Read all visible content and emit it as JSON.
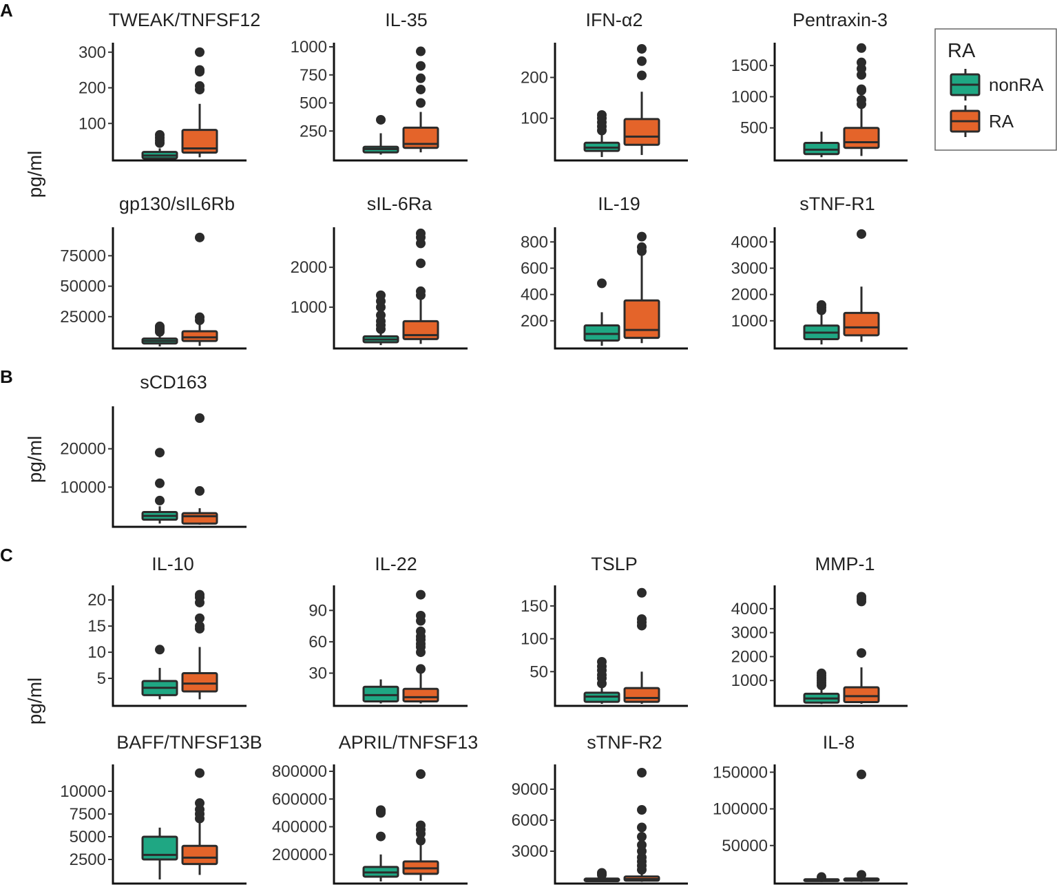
{
  "legend": {
    "title": "RA",
    "entries": [
      {
        "label": "nonRA",
        "color": "#1fa783"
      },
      {
        "label": "RA",
        "color": "#e4642a"
      }
    ]
  },
  "panels": [
    "A",
    "B",
    "C"
  ],
  "ylabel": "pg/ml",
  "colors": {
    "nonRA": "#1fa783",
    "RA": "#e4642a",
    "outline": "#2b2b2b"
  },
  "chart_data": [
    {
      "type": "box",
      "title": "TWEAK/TNFSF12",
      "ylim": [
        0,
        315
      ],
      "yticks": [
        100,
        200,
        300
      ],
      "groups": [
        {
          "name": "nonRA",
          "whisker_low": 0,
          "q1": 2,
          "median": 10,
          "q3": 20,
          "whisker_high": 30,
          "outliers": [
            45,
            52,
            60,
            68
          ]
        },
        {
          "name": "RA",
          "whisker_low": 5,
          "q1": 18,
          "median": 30,
          "q3": 82,
          "whisker_high": 155,
          "outliers": [
            195,
            205,
            245,
            250,
            300
          ]
        }
      ]
    },
    {
      "type": "box",
      "title": "IL-35",
      "ylim": [
        0,
        1000
      ],
      "yticks": [
        250,
        500,
        750,
        1000
      ],
      "groups": [
        {
          "name": "nonRA",
          "whisker_low": 40,
          "q1": 60,
          "median": 90,
          "q3": 110,
          "whisker_high": 230,
          "outliers": [
            350
          ]
        },
        {
          "name": "RA",
          "whisker_low": 60,
          "q1": 100,
          "median": 135,
          "q3": 280,
          "whisker_high": 420,
          "outliers": [
            500,
            620,
            720,
            830,
            960
          ]
        }
      ]
    },
    {
      "type": "box",
      "title": "IFN-α2",
      "ylim": [
        0,
        275
      ],
      "yticks": [
        100,
        200
      ],
      "groups": [
        {
          "name": "nonRA",
          "whisker_low": 5,
          "q1": 20,
          "median": 28,
          "q3": 40,
          "whisker_high": 60,
          "outliers": [
            70,
            80,
            90,
            100,
            108
          ]
        },
        {
          "name": "RA",
          "whisker_low": 10,
          "q1": 35,
          "median": 55,
          "q3": 98,
          "whisker_high": 165,
          "outliers": [
            205,
            240,
            270
          ]
        }
      ]
    },
    {
      "type": "box",
      "title": "Pentraxin-3",
      "ylim": [
        0,
        1800
      ],
      "yticks": [
        500,
        1000,
        1500
      ],
      "groups": [
        {
          "name": "nonRA",
          "whisker_low": 30,
          "q1": 80,
          "median": 150,
          "q3": 260,
          "whisker_high": 440,
          "outliers": []
        },
        {
          "name": "RA",
          "whisker_low": 50,
          "q1": 180,
          "median": 270,
          "q3": 500,
          "whisker_high": 820,
          "outliers": [
            880,
            950,
            1100,
            1120,
            1350,
            1450,
            1550,
            1780
          ]
        }
      ]
    },
    {
      "type": "box",
      "title": "gp130/sIL6Rb",
      "ylim": [
        0,
        95000
      ],
      "yticks": [
        25000,
        50000,
        75000
      ],
      "groups": [
        {
          "name": "nonRA",
          "whisker_low": 500,
          "q1": 3000,
          "median": 5000,
          "q3": 7000,
          "whisker_high": 11000,
          "outliers": [
            12500,
            14000,
            15500,
            17000
          ]
        },
        {
          "name": "RA",
          "whisker_low": 1000,
          "q1": 5000,
          "median": 8000,
          "q3": 13000,
          "whisker_high": 20000,
          "outliers": [
            22000,
            24500,
            90000
          ]
        }
      ]
    },
    {
      "type": "box",
      "title": "sIL-6Ra",
      "ylim": [
        0,
        2900
      ],
      "yticks": [
        1000,
        2000
      ],
      "groups": [
        {
          "name": "nonRA",
          "whisker_low": 50,
          "q1": 120,
          "median": 190,
          "q3": 270,
          "whisker_high": 360,
          "outliers": [
            450,
            550,
            650,
            800,
            1000,
            1150,
            1300
          ]
        },
        {
          "name": "RA",
          "whisker_low": 80,
          "q1": 200,
          "median": 300,
          "q3": 650,
          "whisker_high": 1200,
          "outliers": [
            1300,
            1400,
            2100,
            2600,
            2750,
            2850
          ]
        }
      ]
    },
    {
      "type": "box",
      "title": "IL-19",
      "ylim": [
        0,
        880
      ],
      "yticks": [
        200,
        400,
        600,
        800
      ],
      "groups": [
        {
          "name": "nonRA",
          "whisker_low": 10,
          "q1": 50,
          "median": 100,
          "q3": 165,
          "whisker_high": 265,
          "outliers": [
            485
          ]
        },
        {
          "name": "RA",
          "whisker_low": 30,
          "q1": 70,
          "median": 130,
          "q3": 355,
          "whisker_high": 700,
          "outliers": [
            730,
            760,
            840
          ]
        }
      ]
    },
    {
      "type": "box",
      "title": "sTNF-R1",
      "ylim": [
        0,
        4400
      ],
      "yticks": [
        1000,
        2000,
        3000,
        4000
      ],
      "groups": [
        {
          "name": "nonRA",
          "whisker_low": 100,
          "q1": 300,
          "median": 550,
          "q3": 820,
          "whisker_high": 1280,
          "outliers": [
            1400,
            1500,
            1600
          ]
        },
        {
          "name": "RA",
          "whisker_low": 200,
          "q1": 450,
          "median": 750,
          "q3": 1300,
          "whisker_high": 2300,
          "outliers": [
            4300
          ]
        }
      ]
    },
    {
      "type": "box",
      "title": "sCD163",
      "ylim": [
        0,
        30000
      ],
      "yticks": [
        10000,
        20000
      ],
      "groups": [
        {
          "name": "nonRA",
          "whisker_low": 500,
          "q1": 1500,
          "median": 2500,
          "q3": 3500,
          "whisker_high": 5000,
          "outliers": [
            6500,
            11000,
            19000
          ]
        },
        {
          "name": "RA",
          "whisker_low": 200,
          "q1": 500,
          "median": 2400,
          "q3": 3200,
          "whisker_high": 4500,
          "outliers": [
            9000,
            28000
          ]
        }
      ]
    },
    {
      "type": "box",
      "title": "IL-10",
      "ylim": [
        0,
        22
      ],
      "yticks": [
        5,
        10,
        15,
        20
      ],
      "groups": [
        {
          "name": "nonRA",
          "whisker_low": 1,
          "q1": 1.8,
          "median": 3.2,
          "q3": 4.5,
          "whisker_high": 7,
          "outliers": [
            10.5
          ]
        },
        {
          "name": "RA",
          "whisker_low": 1,
          "q1": 2.5,
          "median": 4,
          "q3": 6,
          "whisker_high": 11,
          "outliers": [
            14.5,
            15,
            16.5,
            19.5,
            20.5,
            21
          ]
        }
      ]
    },
    {
      "type": "box",
      "title": "IL-22",
      "ylim": [
        0,
        110
      ],
      "yticks": [
        30,
        60,
        90
      ],
      "groups": [
        {
          "name": "nonRA",
          "whisker_low": 1,
          "q1": 3,
          "median": 9,
          "q3": 17,
          "whisker_high": 24,
          "outliers": []
        },
        {
          "name": "RA",
          "whisker_low": 1,
          "q1": 3,
          "median": 7,
          "q3": 15,
          "whisker_high": 30,
          "outliers": [
            34,
            50,
            55,
            58,
            62,
            65,
            70,
            80,
            85,
            105
          ]
        }
      ]
    },
    {
      "type": "box",
      "title": "TSLP",
      "ylim": [
        0,
        175
      ],
      "yticks": [
        50,
        100,
        150
      ],
      "groups": [
        {
          "name": "nonRA",
          "whisker_low": 1,
          "q1": 4,
          "median": 12,
          "q3": 18,
          "whisker_high": 26,
          "outliers": [
            32,
            40,
            45,
            52,
            58,
            65
          ]
        },
        {
          "name": "RA",
          "whisker_low": 1,
          "q1": 4,
          "median": 10,
          "q3": 25,
          "whisker_high": 50,
          "outliers": [
            120,
            125,
            130,
            170
          ]
        }
      ]
    },
    {
      "type": "box",
      "title": "MMP-1",
      "ylim": [
        0,
        4800
      ],
      "yticks": [
        1000,
        2000,
        3000,
        4000
      ],
      "groups": [
        {
          "name": "nonRA",
          "whisker_low": 20,
          "q1": 80,
          "median": 250,
          "q3": 450,
          "whisker_high": 700,
          "outliers": [
            800,
            900,
            1000,
            1100,
            1200,
            1300
          ]
        },
        {
          "name": "RA",
          "whisker_low": 30,
          "q1": 100,
          "median": 350,
          "q3": 720,
          "whisker_high": 1550,
          "outliers": [
            2150,
            4300,
            4400,
            4500
          ]
        }
      ]
    },
    {
      "type": "box",
      "title": "BAFF/TNFSF13B",
      "ylim": [
        0,
        12500
      ],
      "yticks": [
        2500,
        5000,
        7500,
        10000
      ],
      "groups": [
        {
          "name": "nonRA",
          "whisker_low": 300,
          "q1": 2500,
          "median": 3000,
          "q3": 5000,
          "whisker_high": 6000,
          "outliers": []
        },
        {
          "name": "RA",
          "whisker_low": 800,
          "q1": 2000,
          "median": 2700,
          "q3": 4000,
          "whisker_high": 6500,
          "outliers": [
            7000,
            7500,
            8000,
            8700,
            12000
          ]
        }
      ]
    },
    {
      "type": "box",
      "title": "APRIL/TNFSF13",
      "ylim": [
        0,
        820000
      ],
      "yticks": [
        200000,
        400000,
        600000,
        800000
      ],
      "groups": [
        {
          "name": "nonRA",
          "whisker_low": 5000,
          "q1": 40000,
          "median": 70000,
          "q3": 110000,
          "whisker_high": 200000,
          "outliers": [
            330000,
            500000,
            510000,
            520000
          ]
        },
        {
          "name": "RA",
          "whisker_low": 10000,
          "q1": 60000,
          "median": 100000,
          "q3": 150000,
          "whisker_high": 280000,
          "outliers": [
            300000,
            350000,
            380000,
            410000,
            780000
          ]
        }
      ]
    },
    {
      "type": "box",
      "title": "sTNF-R2",
      "ylim": [
        0,
        11000
      ],
      "yticks": [
        3000,
        6000,
        9000
      ],
      "groups": [
        {
          "name": "nonRA",
          "whisker_low": 20,
          "q1": 100,
          "median": 200,
          "q3": 350,
          "whisker_high": 600,
          "outliers": [
            700,
            800,
            900
          ]
        },
        {
          "name": "RA",
          "whisker_low": 30,
          "q1": 150,
          "median": 300,
          "q3": 550,
          "whisker_high": 1000,
          "outliers": [
            1200,
            1600,
            2000,
            2400,
            3000,
            3600,
            4400,
            5300,
            7000,
            10600
          ]
        }
      ]
    },
    {
      "type": "box",
      "title": "IL-8",
      "ylim": [
        0,
        155000
      ],
      "yticks": [
        50000,
        100000,
        150000
      ],
      "groups": [
        {
          "name": "nonRA",
          "whisker_low": 200,
          "q1": 1500,
          "median": 2500,
          "q3": 4000,
          "whisker_high": 6000,
          "outliers": [
            7000
          ]
        },
        {
          "name": "RA",
          "whisker_low": 300,
          "q1": 2000,
          "median": 3500,
          "q3": 5000,
          "whisker_high": 9000,
          "outliers": [
            10000,
            147000
          ]
        }
      ]
    }
  ]
}
